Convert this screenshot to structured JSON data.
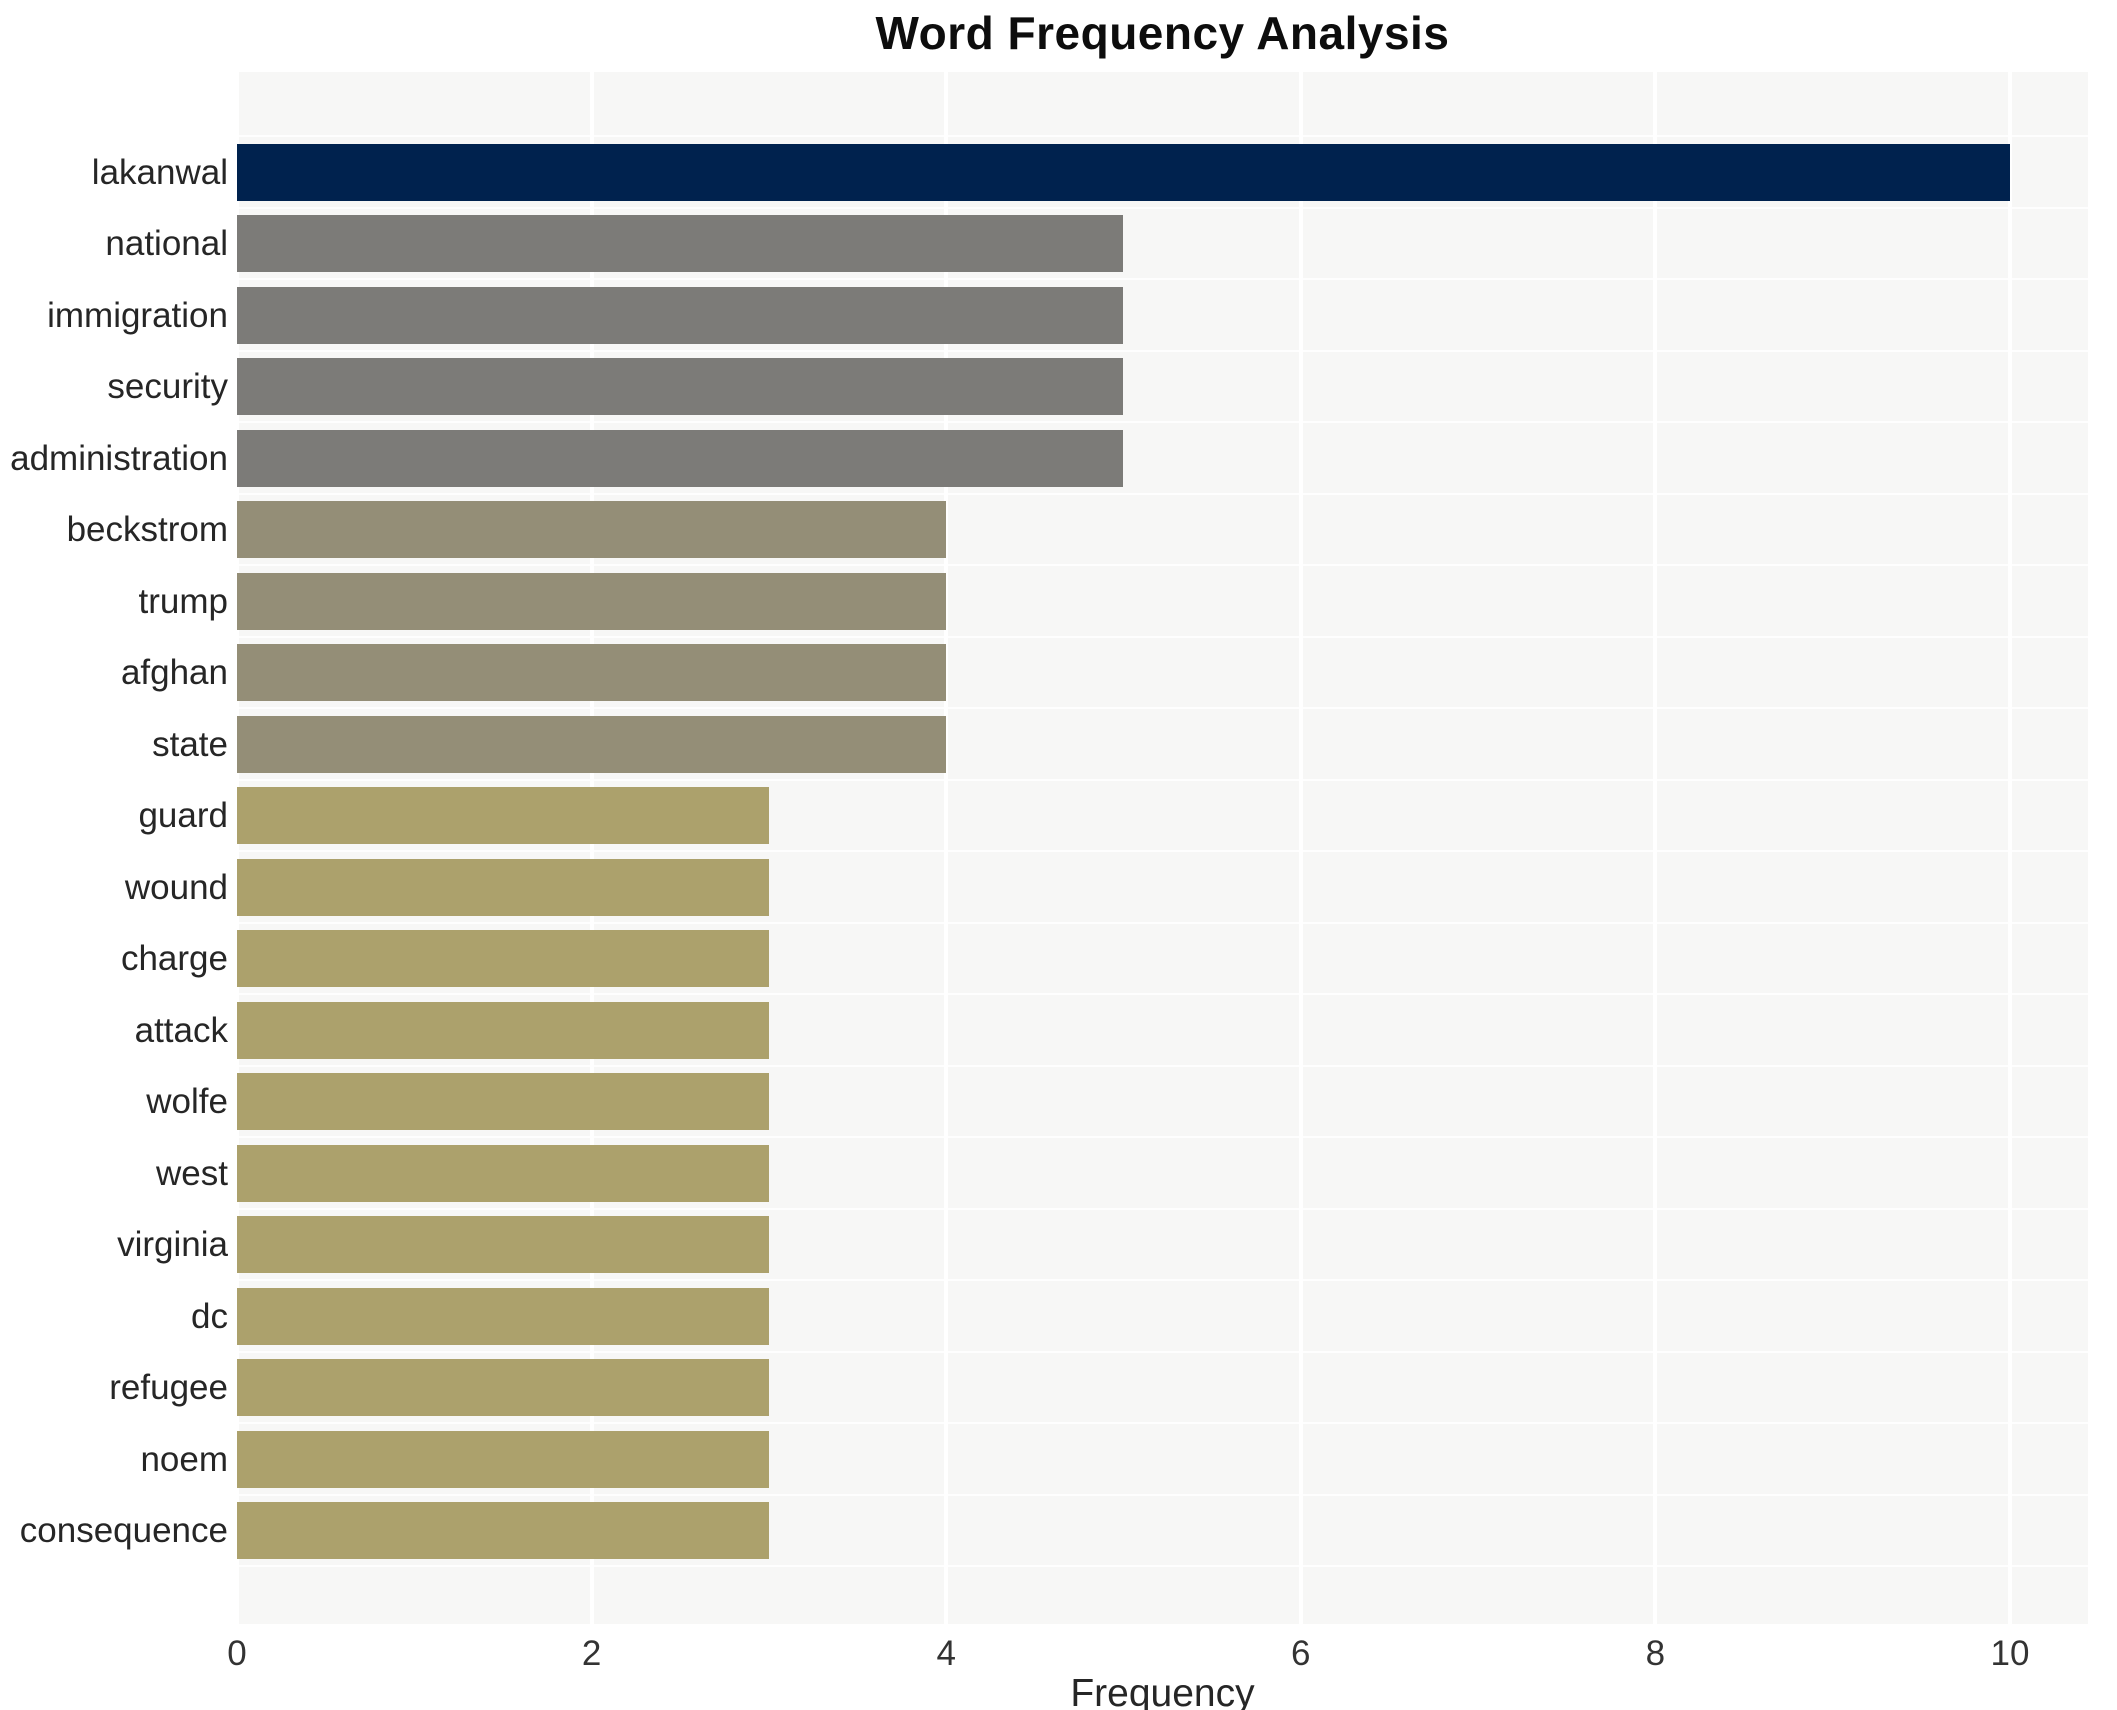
{
  "title": "Word Frequency Analysis",
  "xlabel": "Frequency",
  "chart_data": {
    "type": "bar",
    "orientation": "horizontal",
    "title": "Word Frequency Analysis",
    "xlabel": "Frequency",
    "ylabel": "",
    "grid": true,
    "legend": false,
    "xlim": [
      0,
      10.44
    ],
    "xticks": [
      0,
      2,
      4,
      6,
      8,
      10
    ],
    "categories": [
      "lakanwal",
      "national",
      "immigration",
      "security",
      "administration",
      "beckstrom",
      "trump",
      "afghan",
      "state",
      "guard",
      "wound",
      "charge",
      "attack",
      "wolfe",
      "west",
      "virginia",
      "dc",
      "refugee",
      "noem",
      "consequence"
    ],
    "values": [
      10,
      5,
      5,
      5,
      5,
      4,
      4,
      4,
      4,
      3,
      3,
      3,
      3,
      3,
      3,
      3,
      3,
      3,
      3,
      3
    ],
    "bar_colors": [
      "#00224e",
      "#7c7b78",
      "#7c7b78",
      "#7c7b78",
      "#7c7b78",
      "#948e77",
      "#948e77",
      "#948e77",
      "#948e77",
      "#aca16c",
      "#aca16c",
      "#aca16c",
      "#aca16c",
      "#aca16c",
      "#aca16c",
      "#aca16c",
      "#aca16c",
      "#aca16c",
      "#aca16c",
      "#aca16c"
    ],
    "colors": {
      "highlight_bar": "#00224e",
      "freq5_bar": "#7c7b78",
      "freq4_bar": "#948e77",
      "freq3_bar": "#aca16c",
      "plot_background": "#f7f7f6",
      "grid_line": "#ffffff",
      "title_text": "#0d0d0d",
      "label_text": "#262626",
      "tick_text": "#333333"
    }
  }
}
